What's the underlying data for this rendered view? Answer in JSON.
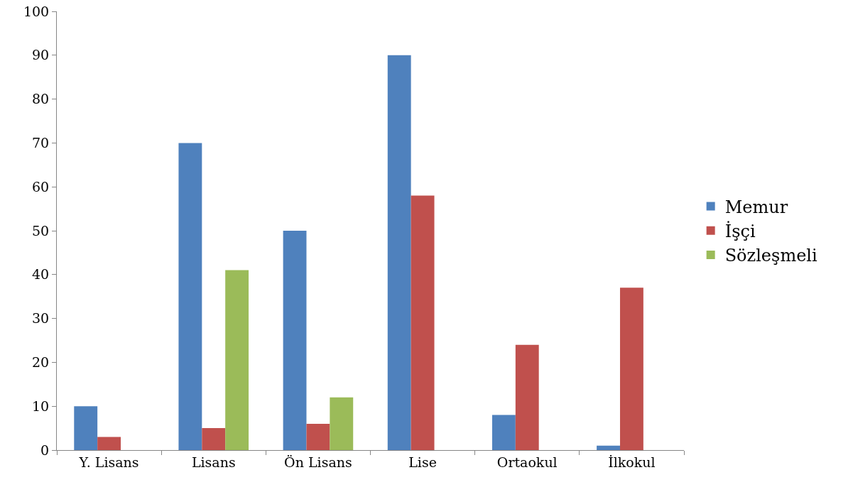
{
  "chart_data": {
    "type": "bar",
    "categories": [
      "Y. Lisans",
      "Lisans",
      "Ön Lisans",
      "Lise",
      "Ortaokul",
      "İlkokul"
    ],
    "series": [
      {
        "name": "Memur",
        "color": "#4f81bd",
        "values": [
          10,
          70,
          50,
          90,
          8,
          1
        ]
      },
      {
        "name": "İşçi",
        "color": "#c0504d",
        "values": [
          3,
          5,
          6,
          58,
          24,
          37
        ]
      },
      {
        "name": "Sözleşmeli",
        "color": "#9bbb59",
        "values": [
          0,
          41,
          12,
          0,
          0,
          0
        ]
      }
    ],
    "ylim": [
      0,
      100
    ],
    "yticks": [
      0,
      10,
      20,
      30,
      40,
      50,
      60,
      70,
      80,
      90,
      100
    ],
    "grid": false,
    "legend": "right"
  }
}
